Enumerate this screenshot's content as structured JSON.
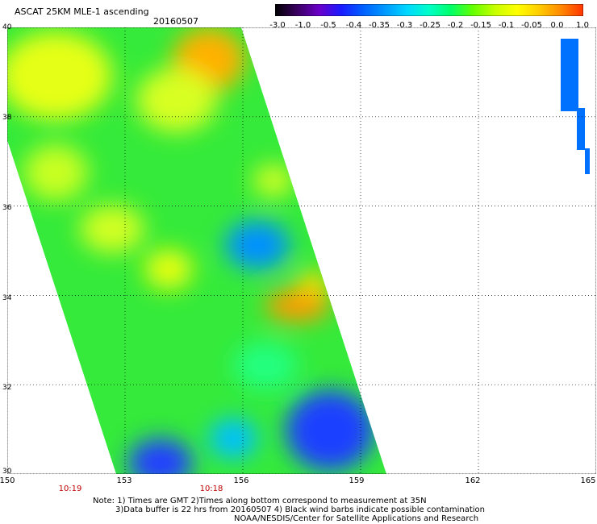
{
  "header": {
    "title": "ASCAT 25KM MLE-1 ascending",
    "date": "20160507"
  },
  "colorbar": {
    "labels": [
      "-3.0",
      "-1.0",
      "-0.5",
      "-0.4",
      "-0.35",
      "-0.3",
      "-0.25",
      "-0.2",
      "-0.15",
      "-0.1",
      "-0.05",
      "0.0",
      "1.0"
    ],
    "colors": [
      "#000000",
      "#3a0060",
      "#6a00c8",
      "#1a1aff",
      "#0060ff",
      "#0099ff",
      "#00d8ff",
      "#00ffc8",
      "#00ff66",
      "#66ff00",
      "#c8ff00",
      "#ffff00",
      "#ffcc00",
      "#ff8800",
      "#ff3300"
    ]
  },
  "axes": {
    "lat_ticks": [
      "40",
      "38",
      "36",
      "34",
      "32",
      "30"
    ],
    "lon_ticks": [
      "150",
      "153",
      "156",
      "159",
      "162",
      "165"
    ]
  },
  "times": [
    "10:19",
    "10:18"
  ],
  "notes": {
    "line1": "Note: 1) Times are GMT 2)Times along bottom correspond to measurement at 35N",
    "line2": "3)Data buffer is 22 hrs from 20160507 4) Black wind barbs indicate possible contamination",
    "line3": "NOAA/NESDIS/Center for Satellite Applications and Research"
  }
}
